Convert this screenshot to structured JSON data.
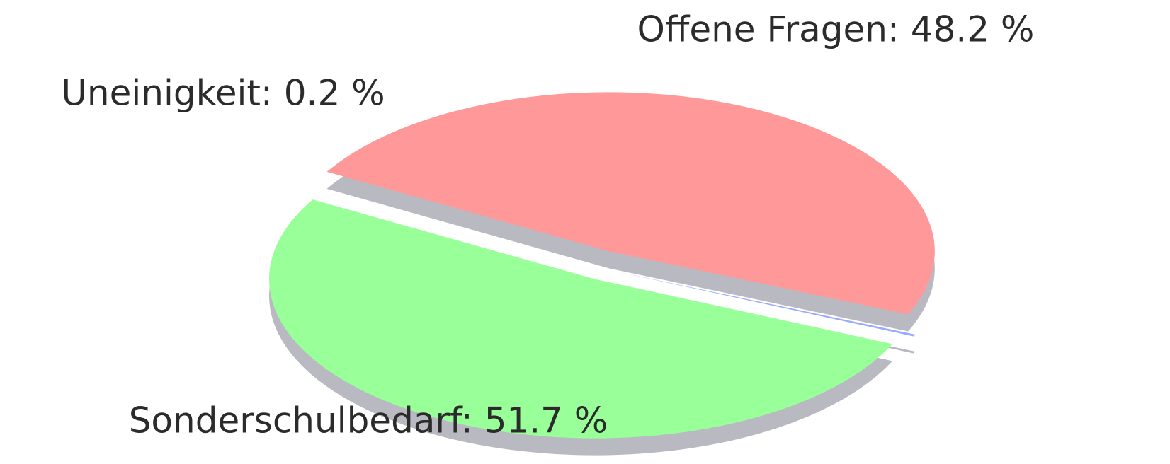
{
  "chart_data": {
    "type": "pie",
    "categories": [
      "Offene Fragen: 48.2 %",
      "Uneinigkeit: 0.2 %",
      "Sonderschulbedarf: 51.7 %"
    ],
    "values": [
      48.2,
      0.2,
      51.7
    ],
    "colors": [
      "#ff9999",
      "#99aaff",
      "#99ff99"
    ]
  }
}
